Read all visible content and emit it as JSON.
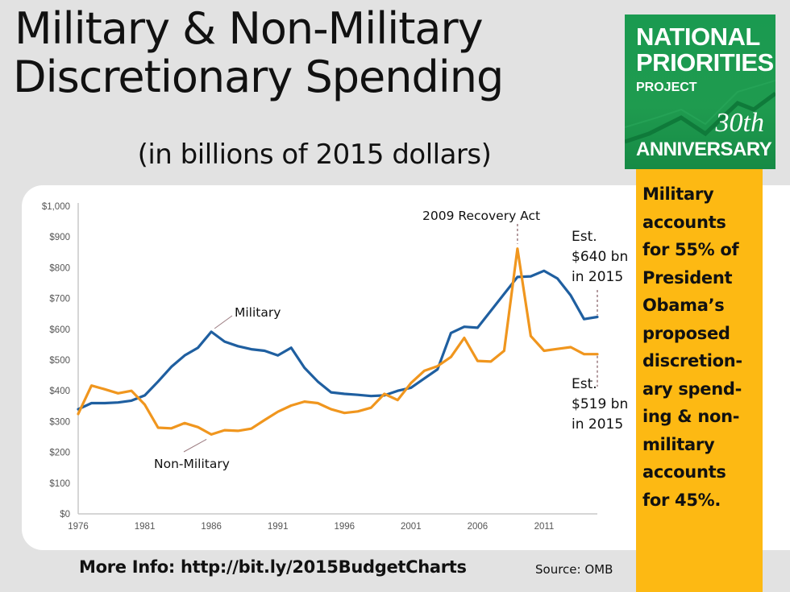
{
  "header": {
    "title_line1": "Military & Non-Military",
    "title_line2": "Discretionary Spending",
    "subtitle": "(in billions of 2015 dollars)"
  },
  "logo": {
    "line1": "NATIONAL",
    "line2": "PRIORITIES",
    "line3": "PROJECT",
    "anniversary_number": "30th",
    "anniversary_label": "ANNIVERSARY",
    "color": "#1a9a50"
  },
  "callout": {
    "lines": [
      "Military",
      "accounts",
      "for 55% of",
      "President",
      "Obama’s",
      "proposed",
      "discretion-",
      "ary spend-",
      "ing & non-",
      "military",
      "accounts",
      "for 45%."
    ],
    "color": "#fdb913"
  },
  "footer": {
    "more_info": "More Info: http://bit.ly/2015BudgetCharts",
    "source": "Source: OMB"
  },
  "chart_data": {
    "type": "line",
    "title": "Military & Non-Military Discretionary Spending",
    "subtitle": "(in billions of 2015 dollars)",
    "xlabel": "",
    "ylabel": "",
    "ylim": [
      0,
      1000
    ],
    "y_ticks": [
      0,
      100,
      200,
      300,
      400,
      500,
      600,
      700,
      800,
      900,
      1000
    ],
    "y_tick_labels": [
      "$0",
      "$100",
      "$200",
      "$300",
      "$400",
      "$500",
      "$600",
      "$700",
      "$800",
      "$900",
      "$1,000"
    ],
    "x_tick_labels": [
      "1976",
      "1981",
      "1986",
      "1991",
      "1996",
      "2001",
      "2006",
      "2011"
    ],
    "x": [
      1976,
      1977,
      1978,
      1979,
      1980,
      1981,
      1982,
      1983,
      1984,
      1985,
      1986,
      1987,
      1988,
      1989,
      1990,
      1991,
      1992,
      1993,
      1994,
      1995,
      1996,
      1997,
      1998,
      1999,
      2000,
      2001,
      2002,
      2003,
      2004,
      2005,
      2006,
      2007,
      2008,
      2009,
      2010,
      2011,
      2012,
      2013,
      2014,
      2015
    ],
    "grid": false,
    "legend": "none (inline labels)",
    "series": [
      {
        "name": "Military",
        "color": "#1f5fa0",
        "values": [
          340,
          360,
          360,
          362,
          368,
          385,
          430,
          478,
          515,
          540,
          592,
          560,
          545,
          535,
          530,
          515,
          540,
          475,
          430,
          395,
          390,
          387,
          383,
          385,
          400,
          410,
          440,
          470,
          588,
          608,
          605,
          660,
          715,
          770,
          772,
          790,
          765,
          710,
          633,
          640
        ]
      },
      {
        "name": "Non-Military",
        "color": "#f0961e",
        "values": [
          325,
          417,
          405,
          392,
          400,
          355,
          280,
          278,
          295,
          282,
          258,
          272,
          270,
          277,
          305,
          332,
          352,
          365,
          360,
          340,
          328,
          333,
          345,
          390,
          370,
          425,
          465,
          480,
          510,
          572,
          497,
          495,
          530,
          862,
          578,
          530,
          536,
          542,
          519,
          519
        ]
      }
    ],
    "annotations": [
      {
        "text": "Military",
        "series": "Military",
        "at_year": 1986
      },
      {
        "text": "Non-Military",
        "series": "Non-Military",
        "at_year": 1986
      },
      {
        "text": "2009 Recovery Act",
        "series": "Non-Military",
        "at_year": 2009
      },
      {
        "text": [
          "Est.",
          "$640 bn",
          "in 2015"
        ],
        "series": "Military",
        "at_year": 2015,
        "value": 640
      },
      {
        "text": [
          "Est.",
          "$519 bn",
          "in 2015"
        ],
        "series": "Non-Military",
        "at_year": 2015,
        "value": 519
      }
    ]
  }
}
